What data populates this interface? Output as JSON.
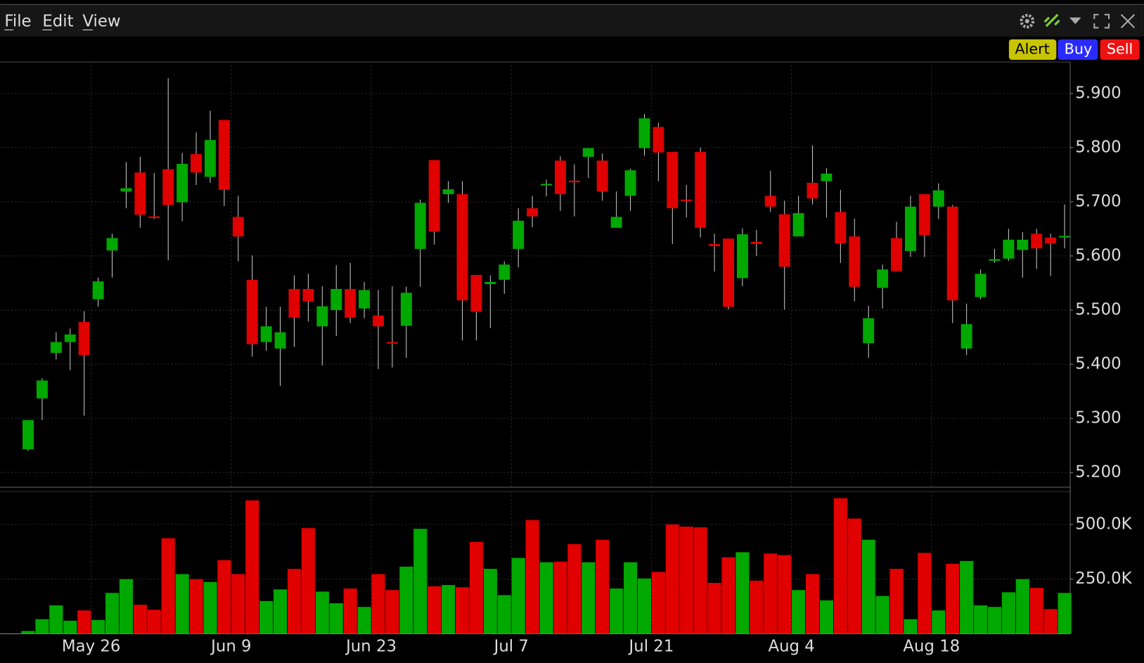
{
  "menu": [
    "File",
    "Edit",
    "View"
  ],
  "buttons": [
    "Alert",
    "Buy",
    "Sell"
  ],
  "chart_data": {
    "type": "candlestick",
    "up_color": "#00a800",
    "down_color": "#e00000",
    "wick_color": "#c8c8c8",
    "grid": true,
    "x": [
      0,
      1,
      2,
      3,
      4,
      5,
      6,
      7,
      8,
      9,
      10,
      11,
      12,
      13,
      14,
      15,
      16,
      17,
      18,
      19,
      20,
      21,
      22,
      23,
      24,
      25,
      26,
      27,
      28,
      29,
      30,
      31,
      32,
      33,
      34,
      35,
      36,
      37,
      38,
      39,
      40,
      41,
      42,
      43,
      44,
      45,
      46,
      47,
      48,
      49,
      50,
      51,
      52,
      53,
      54,
      55,
      56,
      57,
      58,
      59,
      60,
      61,
      62,
      63,
      64,
      65,
      66,
      67,
      68,
      69,
      70,
      71,
      72,
      73,
      74
    ],
    "xlim": [
      -2,
      74.4
    ],
    "xticks": [
      {
        "value": 4.5,
        "label": "May 26"
      },
      {
        "value": 14.5,
        "label": "Jun 9"
      },
      {
        "value": 24.5,
        "label": "Jun 23"
      },
      {
        "value": 34.5,
        "label": "Jul 7"
      },
      {
        "value": 44.5,
        "label": "Jul 21"
      },
      {
        "value": 54.5,
        "label": "Aug 4"
      },
      {
        "value": 64.5,
        "label": "Aug 18"
      }
    ],
    "open": [
      5.243,
      5.337,
      5.421,
      5.441,
      5.478,
      5.52,
      5.61,
      5.719,
      5.754,
      5.673,
      5.76,
      5.699,
      5.788,
      5.746,
      5.851,
      5.672,
      5.556,
      5.441,
      5.429,
      5.539,
      5.539,
      5.47,
      5.5,
      5.539,
      5.503,
      5.49,
      5.441,
      5.471,
      5.613,
      5.777,
      5.714,
      5.714,
      5.565,
      5.548,
      5.556,
      5.613,
      5.688,
      5.73,
      5.776,
      5.739,
      5.783,
      5.776,
      5.652,
      5.711,
      5.799,
      5.838,
      5.792,
      5.704,
      5.792,
      5.622,
      5.632,
      5.559,
      5.626,
      5.711,
      5.677,
      5.636,
      5.735,
      5.738,
      5.681,
      5.636,
      5.439,
      5.541,
      5.633,
      5.609,
      5.714,
      5.691,
      5.691,
      5.429,
      5.524,
      5.591,
      5.595,
      5.611,
      5.641,
      5.634,
      5.634
    ],
    "high": [
      5.297,
      5.374,
      5.459,
      5.466,
      5.498,
      5.56,
      5.641,
      5.773,
      5.783,
      5.753,
      5.928,
      5.79,
      5.828,
      5.868,
      5.851,
      5.711,
      5.601,
      5.506,
      5.506,
      5.564,
      5.567,
      5.544,
      5.583,
      5.587,
      5.552,
      5.537,
      5.544,
      5.543,
      5.704,
      5.777,
      5.738,
      5.738,
      5.565,
      5.564,
      5.59,
      5.688,
      5.711,
      5.741,
      5.784,
      5.769,
      5.799,
      5.789,
      5.719,
      5.761,
      5.862,
      5.846,
      5.792,
      5.731,
      5.8,
      5.641,
      5.632,
      5.651,
      5.648,
      5.757,
      5.702,
      5.711,
      5.804,
      5.762,
      5.722,
      5.669,
      5.508,
      5.584,
      5.663,
      5.711,
      5.714,
      5.734,
      5.694,
      5.512,
      5.575,
      5.613,
      5.65,
      5.644,
      5.65,
      5.641,
      5.695
    ],
    "low": [
      5.24,
      5.297,
      5.409,
      5.389,
      5.305,
      5.506,
      5.56,
      5.688,
      5.652,
      5.668,
      5.592,
      5.664,
      5.731,
      5.735,
      5.692,
      5.59,
      5.414,
      5.425,
      5.36,
      5.432,
      5.479,
      5.398,
      5.452,
      5.476,
      5.485,
      5.391,
      5.394,
      5.412,
      5.543,
      5.621,
      5.698,
      5.444,
      5.444,
      5.467,
      5.53,
      5.579,
      5.653,
      5.71,
      5.683,
      5.673,
      5.744,
      5.702,
      5.652,
      5.683,
      5.785,
      5.738,
      5.622,
      5.671,
      5.634,
      5.571,
      5.501,
      5.544,
      5.6,
      5.681,
      5.501,
      5.636,
      5.695,
      5.671,
      5.587,
      5.516,
      5.412,
      5.503,
      5.572,
      5.598,
      5.598,
      5.668,
      5.476,
      5.417,
      5.52,
      5.587,
      5.591,
      5.56,
      5.576,
      5.563,
      5.614
    ],
    "close": [
      5.297,
      5.37,
      5.441,
      5.455,
      5.417,
      5.553,
      5.633,
      5.725,
      5.676,
      5.67,
      5.694,
      5.77,
      5.754,
      5.814,
      5.722,
      5.636,
      5.437,
      5.47,
      5.459,
      5.486,
      5.516,
      5.507,
      5.539,
      5.486,
      5.537,
      5.47,
      5.438,
      5.532,
      5.698,
      5.645,
      5.723,
      5.518,
      5.497,
      5.552,
      5.584,
      5.665,
      5.673,
      5.733,
      5.714,
      5.736,
      5.799,
      5.719,
      5.672,
      5.758,
      5.854,
      5.791,
      5.688,
      5.702,
      5.652,
      5.618,
      5.506,
      5.64,
      5.622,
      5.691,
      5.58,
      5.679,
      5.706,
      5.752,
      5.623,
      5.543,
      5.485,
      5.575,
      5.572,
      5.691,
      5.638,
      5.721,
      5.518,
      5.474,
      5.567,
      5.594,
      5.63,
      5.63,
      5.614,
      5.623,
      5.637
    ],
    "ylim": [
      5.173,
      5.958
    ],
    "yticks": [
      {
        "value": 5.2,
        "label": "5.200"
      },
      {
        "value": 5.3,
        "label": "5.300"
      },
      {
        "value": 5.4,
        "label": "5.400"
      },
      {
        "value": 5.5,
        "label": "5.500"
      },
      {
        "value": 5.6,
        "label": "5.600"
      },
      {
        "value": 5.7,
        "label": "5.700"
      },
      {
        "value": 5.8,
        "label": "5.800"
      },
      {
        "value": 5.9,
        "label": "5.900"
      }
    ],
    "volume": {
      "values": [
        13000,
        67000,
        130000,
        60000,
        107000,
        63000,
        187000,
        250000,
        133000,
        110000,
        437000,
        273000,
        250000,
        237000,
        337000,
        273000,
        610000,
        150000,
        203000,
        297000,
        483000,
        193000,
        140000,
        207000,
        123000,
        273000,
        200000,
        307000,
        480000,
        217000,
        223000,
        213000,
        420000,
        297000,
        177000,
        347000,
        520000,
        327000,
        330000,
        410000,
        327000,
        430000,
        207000,
        327000,
        253000,
        283000,
        500000,
        490000,
        487000,
        233000,
        350000,
        373000,
        243000,
        367000,
        360000,
        200000,
        273000,
        153000,
        620000,
        527000,
        430000,
        173000,
        297000,
        67000,
        370000,
        107000,
        320000,
        333000,
        130000,
        123000,
        190000,
        250000,
        210000,
        113000,
        187000
      ],
      "ylim": [
        0,
        650000
      ],
      "yticks": [
        {
          "value": 250000,
          "label": "250.0K"
        },
        {
          "value": 500000,
          "label": "500.0K"
        }
      ]
    }
  }
}
